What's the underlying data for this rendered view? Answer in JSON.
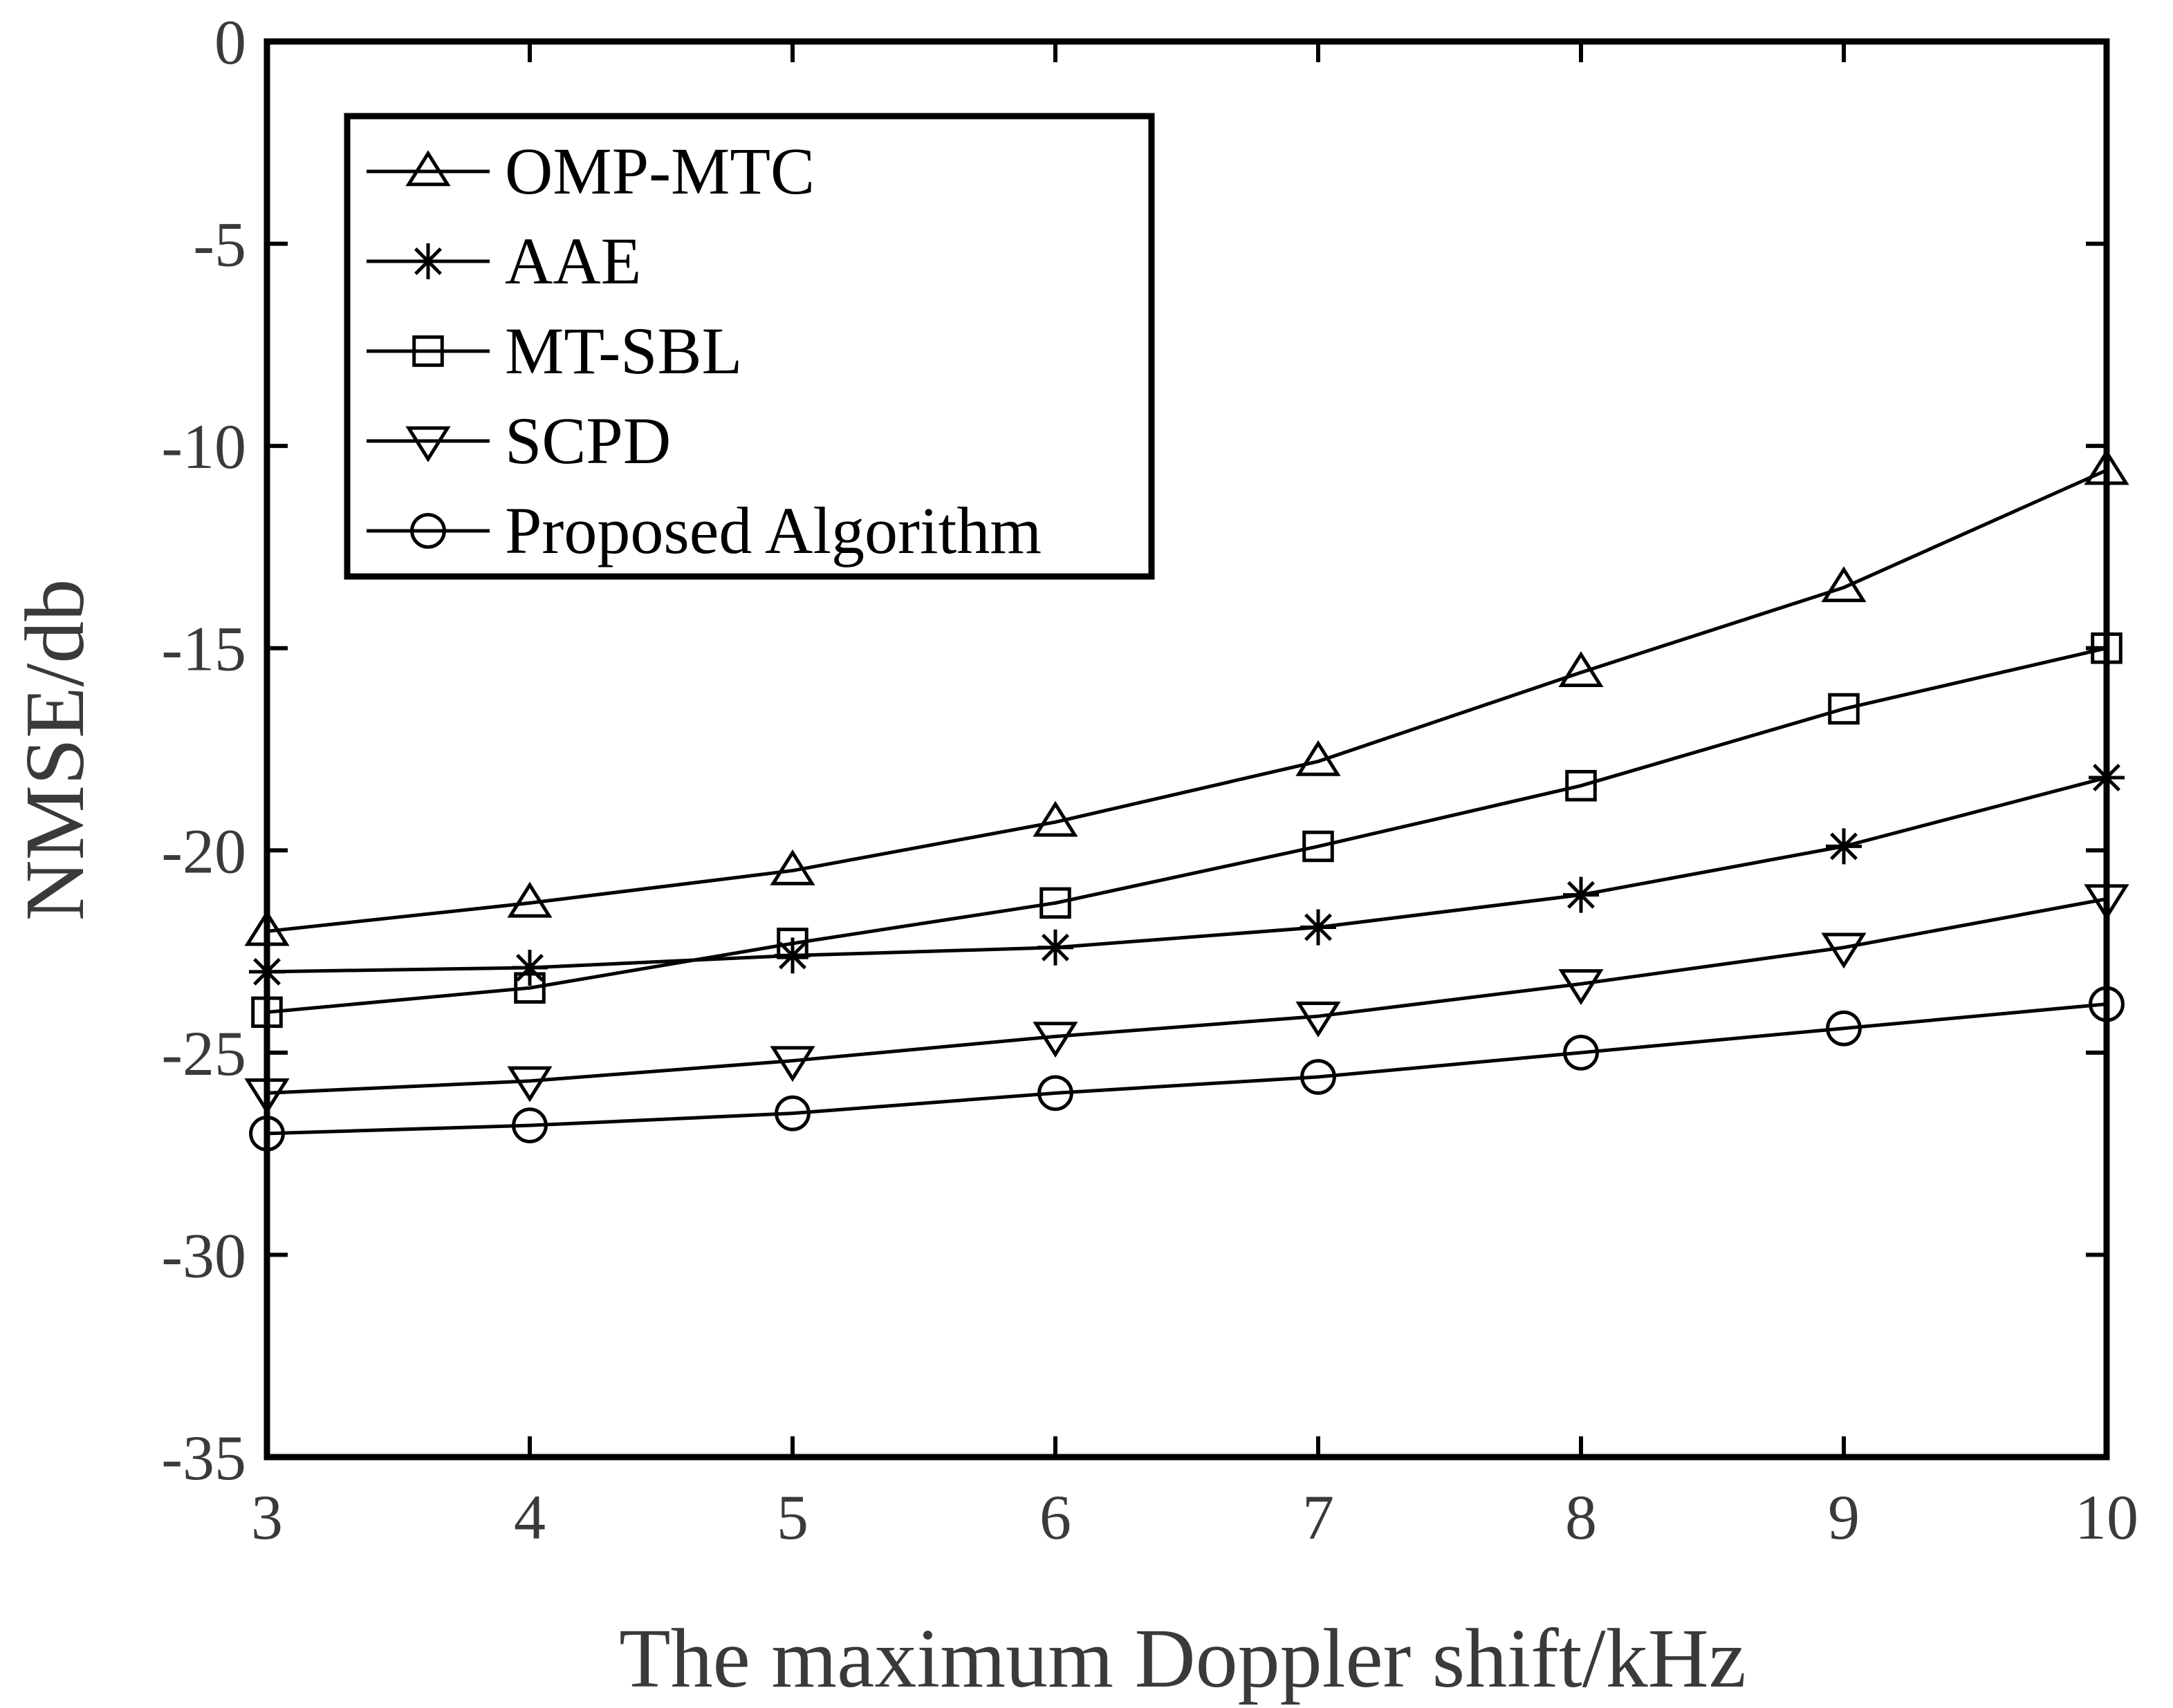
{
  "chart_data": {
    "type": "line",
    "title": "",
    "xlabel": "The maximum Doppler shift/kHz",
    "ylabel": "NMSE/db",
    "x": [
      3,
      4,
      5,
      6,
      7,
      8,
      9,
      10
    ],
    "xlim": [
      3,
      10
    ],
    "ylim": [
      -35,
      0
    ],
    "xticks": [
      "3",
      "4",
      "5",
      "6",
      "7",
      "8",
      "9",
      "10"
    ],
    "yticks": [
      "0",
      "-5",
      "-10",
      "-15",
      "-20",
      "-25",
      "-30",
      "-35"
    ],
    "grid": false,
    "legend_position": "top-left",
    "series": [
      {
        "name": "OMP-MTC",
        "marker": "triangle-up",
        "color": "#000000",
        "values": [
          -22.0,
          -21.3,
          -20.5,
          -19.3,
          -17.8,
          -15.6,
          -13.5,
          -10.6
        ]
      },
      {
        "name": "AAE",
        "marker": "asterisk",
        "color": "#000000",
        "values": [
          -23.0,
          -22.9,
          -22.6,
          -22.4,
          -21.9,
          -21.1,
          -19.9,
          -18.2
        ]
      },
      {
        "name": "MT-SBL",
        "marker": "square",
        "color": "#000000",
        "values": [
          -24.0,
          -23.4,
          -22.3,
          -21.3,
          -19.9,
          -18.4,
          -16.5,
          -15.0
        ]
      },
      {
        "name": "SCPD",
        "marker": "triangle-down",
        "color": "#000000",
        "values": [
          -26.0,
          -25.7,
          -25.2,
          -24.6,
          -24.1,
          -23.3,
          -22.4,
          -21.2
        ]
      },
      {
        "name": "Proposed Algorithm",
        "marker": "circle",
        "color": "#000000",
        "values": [
          -27.0,
          -26.8,
          -26.5,
          -26.0,
          -25.6,
          -25.0,
          -24.4,
          -23.8
        ]
      }
    ]
  }
}
